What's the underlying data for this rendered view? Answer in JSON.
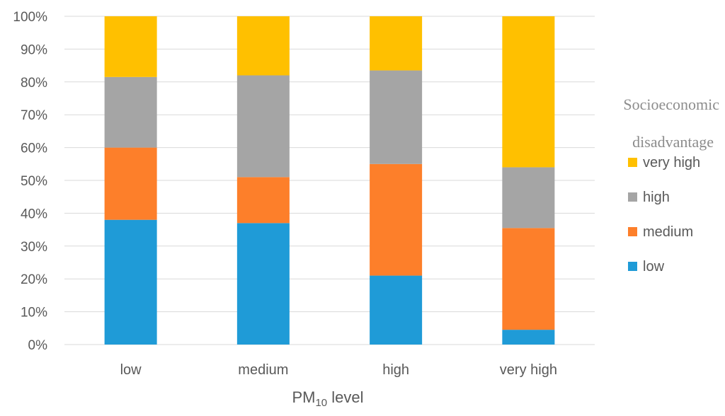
{
  "chart_data": {
    "type": "bar",
    "stacked": true,
    "percent_stacked": true,
    "categories": [
      "low",
      "medium",
      "high",
      "very high"
    ],
    "series": [
      {
        "name": "low",
        "color": "#1f9bd7",
        "values": [
          38,
          37,
          21,
          4.5
        ]
      },
      {
        "name": "medium",
        "color": "#fd7f2a",
        "values": [
          22,
          14,
          34,
          31
        ]
      },
      {
        "name": "high",
        "color": "#a5a5a5",
        "values": [
          21.5,
          31,
          28.5,
          18.5
        ]
      },
      {
        "name": "very high",
        "color": "#ffc000",
        "values": [
          18.5,
          18,
          16.5,
          46
        ]
      }
    ],
    "y_ticks": [
      "0%",
      "10%",
      "20%",
      "30%",
      "40%",
      "50%",
      "60%",
      "70%",
      "80%",
      "90%",
      "100%"
    ],
    "ylim": [
      0,
      100
    ],
    "xlabel_main": "PM",
    "xlabel_sub": "10",
    "xlabel_rest": " level",
    "ylabel": "",
    "grid": true,
    "legend": {
      "title_line1": "Socioeconomic",
      "title_line2": "disadvantage",
      "position": "right",
      "order": [
        "very high",
        "high",
        "medium",
        "low"
      ]
    }
  }
}
